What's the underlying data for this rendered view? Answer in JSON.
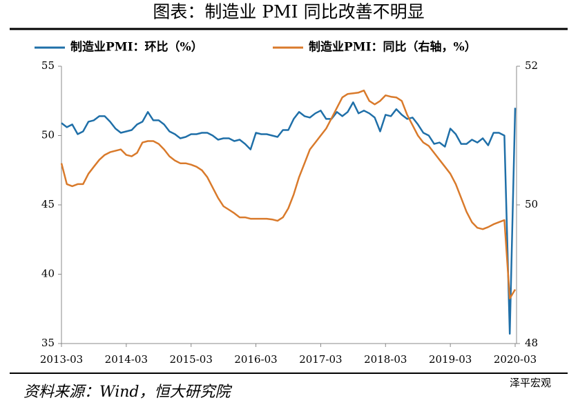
{
  "title": "图表：制造业 PMI 同比改善不明显",
  "source": "资料来源：Wind，恒大研究院",
  "watermark": "泽平宏观",
  "chart_data": {
    "type": "line",
    "x": [
      "2013-03",
      null,
      null,
      null,
      null,
      null,
      null,
      null,
      null,
      null,
      null,
      null,
      "2014-03",
      null,
      null,
      null,
      null,
      null,
      null,
      null,
      null,
      null,
      null,
      null,
      "2015-03",
      null,
      null,
      null,
      null,
      null,
      null,
      null,
      null,
      null,
      null,
      null,
      "2016-03",
      null,
      null,
      null,
      null,
      null,
      null,
      null,
      null,
      null,
      null,
      null,
      "2017-03",
      null,
      null,
      null,
      null,
      null,
      null,
      null,
      null,
      null,
      null,
      null,
      "2018-03",
      null,
      null,
      null,
      null,
      null,
      null,
      null,
      null,
      null,
      null,
      null,
      "2019-03",
      null,
      null,
      null,
      null,
      null,
      null,
      null,
      null,
      null,
      null,
      null,
      "2020-03"
    ],
    "series": [
      {
        "name": "制造业PMI：环比（%）",
        "color": "#1f6fa8",
        "values": [
          50.9,
          50.6,
          50.8,
          50.1,
          50.3,
          51.0,
          51.1,
          51.4,
          51.4,
          51.0,
          50.5,
          50.2,
          50.3,
          50.4,
          50.8,
          51.0,
          51.7,
          51.1,
          51.1,
          50.8,
          50.3,
          50.1,
          49.8,
          49.9,
          50.1,
          50.1,
          50.2,
          50.2,
          50.0,
          49.7,
          49.8,
          49.8,
          49.6,
          49.7,
          49.4,
          49.0,
          50.2,
          50.1,
          50.1,
          50.0,
          49.9,
          50.4,
          50.4,
          51.2,
          51.7,
          51.4,
          51.3,
          51.6,
          51.8,
          51.2,
          51.2,
          51.7,
          51.4,
          51.7,
          52.4,
          51.6,
          51.8,
          51.6,
          51.3,
          50.3,
          51.5,
          51.4,
          51.9,
          51.5,
          51.2,
          51.3,
          50.8,
          50.2,
          50.0,
          49.4,
          49.5,
          49.2,
          50.5,
          50.1,
          49.4,
          49.4,
          49.7,
          49.5,
          49.8,
          49.3,
          50.2,
          50.2,
          50.0,
          35.7,
          52.0
        ]
      },
      {
        "name": "制造业PMI：同比（右轴，%）",
        "color": "#d97a2b",
        "axis": "y2",
        "values": [
          50.6,
          50.3,
          50.27,
          50.3,
          50.3,
          50.45,
          50.55,
          50.65,
          50.72,
          50.76,
          50.78,
          50.8,
          50.72,
          50.7,
          50.75,
          50.9,
          50.92,
          50.92,
          50.88,
          50.8,
          50.7,
          50.64,
          50.6,
          50.6,
          50.58,
          50.55,
          50.5,
          50.4,
          50.25,
          50.1,
          49.98,
          49.93,
          49.88,
          49.82,
          49.82,
          49.8,
          49.8,
          49.8,
          49.8,
          49.79,
          49.77,
          49.82,
          49.95,
          50.15,
          50.4,
          50.6,
          50.8,
          50.9,
          51.0,
          51.1,
          51.25,
          51.4,
          51.55,
          51.6,
          51.61,
          51.62,
          51.65,
          51.5,
          51.45,
          51.5,
          51.58,
          51.56,
          51.55,
          51.5,
          51.3,
          51.15,
          51.0,
          50.9,
          50.85,
          50.75,
          50.65,
          50.55,
          50.45,
          50.3,
          50.1,
          49.9,
          49.75,
          49.67,
          49.65,
          49.68,
          49.72,
          49.75,
          49.78,
          48.65,
          48.78
        ]
      }
    ],
    "ylim": [
      35,
      55
    ],
    "yticks": [
      35,
      40,
      45,
      50,
      55
    ],
    "y2lim": [
      48,
      52
    ],
    "y2ticks": [
      48,
      50,
      52
    ],
    "grid": false,
    "legend": "top"
  }
}
